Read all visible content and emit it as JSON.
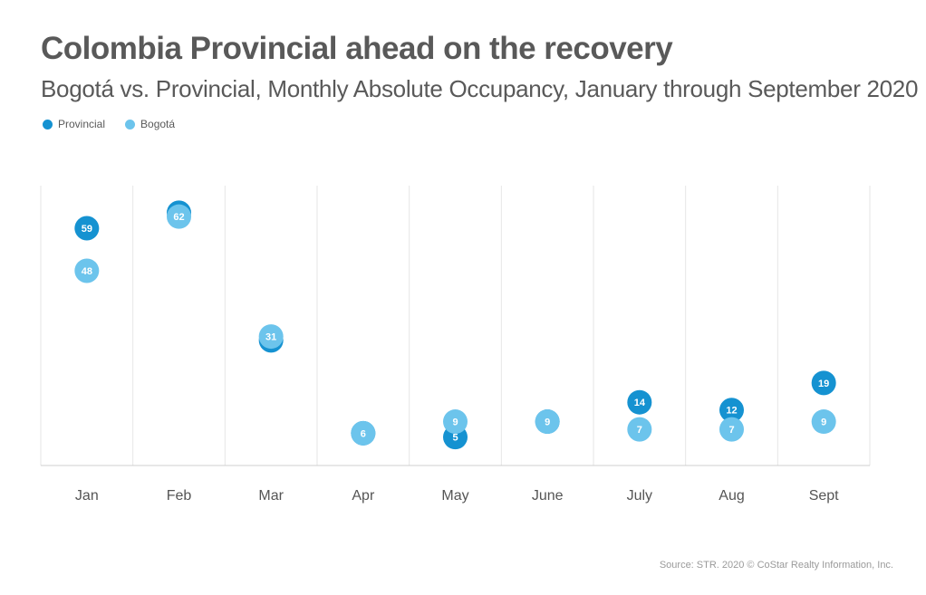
{
  "colors": {
    "provincial": "#1592d1",
    "bogota": "#6cc4ec",
    "grid": "#e6e6e6",
    "axis": "#cfcfcf"
  },
  "chart_data": {
    "type": "scatter",
    "title": "Colombia Provincial ahead on the recovery",
    "subtitle": "Bogotá vs. Provincial, Monthly Absolute Occupancy, January through September 2020",
    "categories": [
      "Jan",
      "Feb",
      "Mar",
      "Apr",
      "May",
      "June",
      "July",
      "Aug",
      "Sept"
    ],
    "series": [
      {
        "name": "Provincial",
        "color": "#1592d1",
        "values": [
          59,
          63,
          30,
          6,
          5,
          9,
          14,
          12,
          19
        ]
      },
      {
        "name": "Bogotá",
        "color": "#6cc4ec",
        "values": [
          48,
          62,
          31,
          6,
          9,
          9,
          7,
          7,
          9
        ]
      }
    ],
    "ylim": [
      0,
      70
    ],
    "grid": "vertical",
    "legend": "top-left"
  },
  "source": "Source: STR. 2020 © CoStar Realty Information, Inc."
}
